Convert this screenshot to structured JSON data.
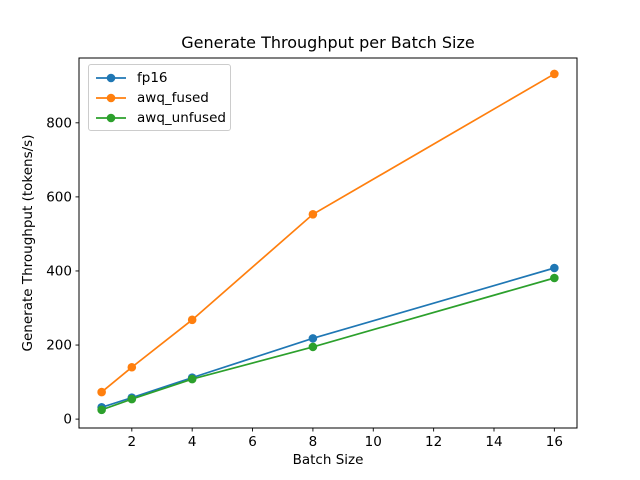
{
  "chart_data": {
    "type": "line",
    "title": "Generate Throughput per Batch Size",
    "xlabel": "Batch Size",
    "ylabel": "Generate Throughput (tokens/s)",
    "x": [
      1,
      2,
      4,
      8,
      16
    ],
    "series": [
      {
        "name": "fp16",
        "color": "#1f77b4",
        "values": [
          32,
          58,
          112,
          218,
          408
        ]
      },
      {
        "name": "awq_fused",
        "color": "#ff7f0e",
        "values": [
          73,
          140,
          268,
          553,
          932
        ]
      },
      {
        "name": "awq_unfused",
        "color": "#2ca02c",
        "values": [
          25,
          54,
          108,
          195,
          381
        ]
      }
    ],
    "xticks": [
      2,
      4,
      6,
      8,
      10,
      12,
      14,
      16
    ],
    "yticks": [
      0,
      200,
      400,
      600,
      800
    ],
    "xlim": [
      0.25,
      16.75
    ],
    "ylim": [
      -24,
      975
    ],
    "grid": false,
    "legend_position": "upper left",
    "marker": "o",
    "colors": {
      "axis": "#000000",
      "text": "#000000",
      "background": "#ffffff",
      "legend_border": "#cccccc"
    }
  }
}
